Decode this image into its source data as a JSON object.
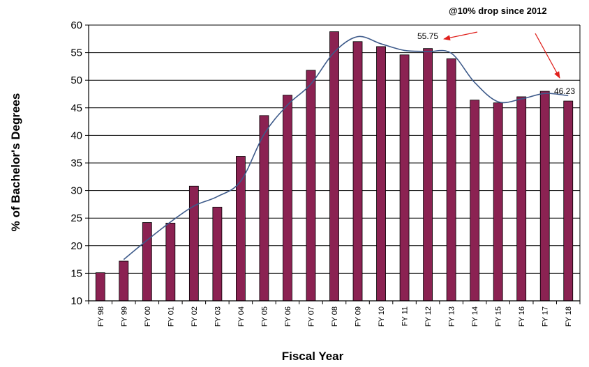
{
  "chart_data": {
    "type": "bar",
    "title": "",
    "xlabel": "Fiscal Year",
    "ylabel": "% of Bachelor's Degrees",
    "ylim": [
      10,
      60
    ],
    "yticks": [
      10,
      15,
      20,
      25,
      30,
      35,
      40,
      45,
      50,
      55,
      60
    ],
    "grid": true,
    "categories": [
      "FY 98",
      "FY 99",
      "FY 00",
      "FY 01",
      "FY 02",
      "FY 03",
      "FY 04",
      "FY 05",
      "FY 06",
      "FY 07",
      "FY 08",
      "FY 09",
      "FY 10",
      "FY 11",
      "FY 12",
      "FY 13",
      "FY 14",
      "FY 15",
      "FY 16",
      "FY 17",
      "FY 18"
    ],
    "series": [
      {
        "type": "bar",
        "color": "#8b2252",
        "values": [
          15.1,
          17.2,
          24.2,
          24.1,
          30.8,
          27.0,
          36.2,
          43.6,
          47.3,
          51.8,
          58.8,
          57.0,
          56.1,
          54.6,
          55.75,
          53.9,
          46.4,
          45.9,
          47.0,
          48.0,
          46.23
        ]
      },
      {
        "type": "line",
        "color": "#3d5a8a",
        "values": [
          null,
          17.5,
          21.0,
          24.3,
          27.2,
          28.9,
          31.7,
          40.2,
          45.5,
          49.3,
          55.1,
          57.9,
          56.6,
          55.4,
          55.2,
          54.9,
          49.6,
          46.1,
          46.6,
          47.6,
          47.2
        ]
      }
    ],
    "annotations": {
      "label_1": "55.75",
      "label_2": "46.23",
      "note": "@10% drop since 2012"
    }
  }
}
